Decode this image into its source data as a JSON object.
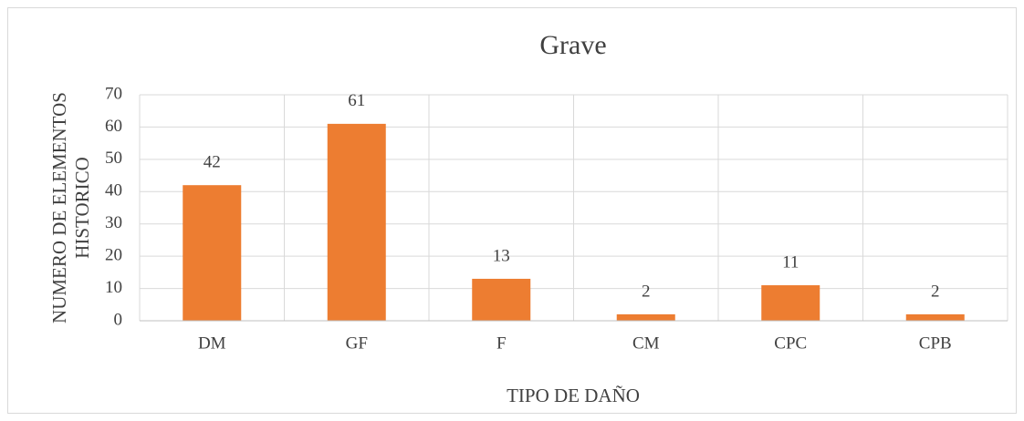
{
  "chart_data": {
    "type": "bar",
    "title": "Grave",
    "categories": [
      "DM",
      "GF",
      "F",
      "CM",
      "CPC",
      "CPB"
    ],
    "values": [
      42,
      61,
      13,
      2,
      11,
      2
    ],
    "color": "#ed7d31",
    "x_label": "TIPO DE DAÑO",
    "y_label": [
      "NUMERO DE ELEMENTOS",
      "HISTORICO"
    ],
    "ylim": [
      0,
      70
    ],
    "yticks": [
      0,
      10,
      20,
      30,
      40,
      50,
      60,
      70
    ],
    "grid": true
  }
}
